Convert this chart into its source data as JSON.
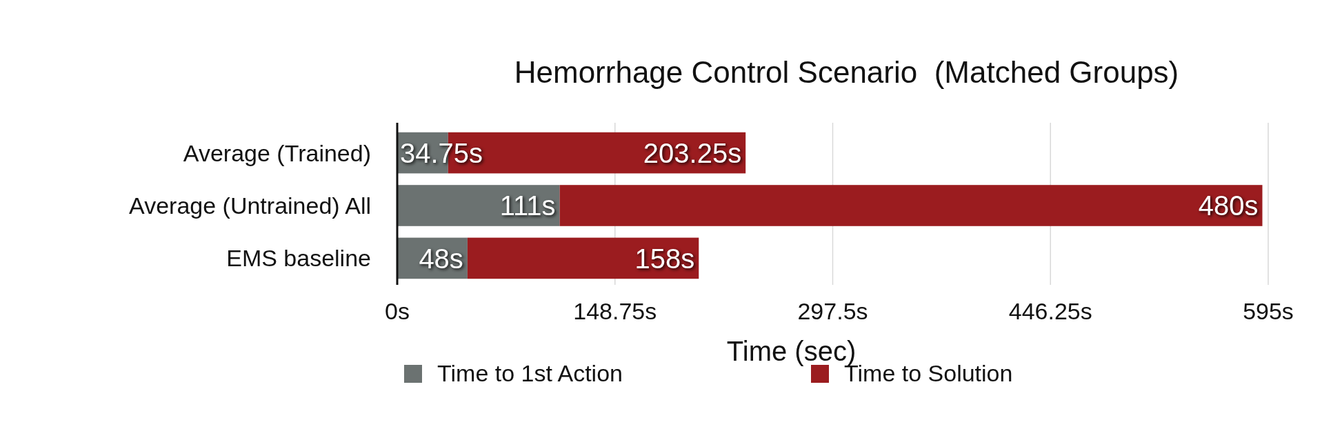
{
  "chart_data": {
    "type": "bar",
    "orientation": "horizontal",
    "stacked": true,
    "title": "Hemorrhage Control Scenario  (Matched Groups)",
    "xlabel": "Time (sec)",
    "categories": [
      "Average (Trained)",
      "Average (Untrained) All",
      "EMS baseline"
    ],
    "series": [
      {
        "name": "Time to 1st Action",
        "color": "#6b7271",
        "values": [
          34.75,
          111,
          48
        ],
        "value_labels": [
          "34.75s",
          "111s",
          "48s"
        ]
      },
      {
        "name": "Time to Solution",
        "color": "#9b1c1f",
        "values": [
          203.25,
          480,
          158
        ],
        "value_labels": [
          "203.25s",
          "480s",
          "158s"
        ]
      }
    ],
    "xlim": [
      0,
      595
    ],
    "xticks": [
      {
        "value": 0,
        "label": "0s"
      },
      {
        "value": 148.75,
        "label": "148.75s"
      },
      {
        "value": 297.5,
        "label": "297.5s"
      },
      {
        "value": 446.25,
        "label": "446.25s"
      },
      {
        "value": 595,
        "label": "595s"
      }
    ],
    "grid": "x",
    "legend": "bottom"
  }
}
